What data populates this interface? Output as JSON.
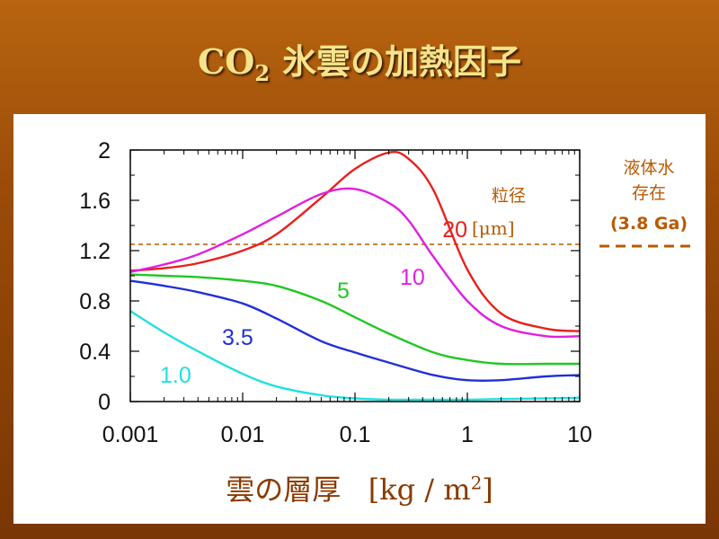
{
  "slide": {
    "title_main": "CO",
    "title_sub": "2",
    "title_rest": "氷雲の加熱因子"
  },
  "colors": {
    "background": "#9a4c08",
    "title": "#f6e48a",
    "annotation": "#b85a00",
    "axis_title": "#8a3a00"
  },
  "chart_data": {
    "type": "line",
    "title": "CO2 氷雲の加熱因子",
    "xlabel": "雲の層厚 [kg / m2]",
    "xlabel_main": "雲の層厚",
    "xlabel_unit": "[kg / m",
    "xlabel_unit_sup": "2",
    "xlabel_unit_end": "]",
    "ylabel": "",
    "xscale": "log",
    "xlim": [
      0.001,
      10
    ],
    "ylim": [
      0,
      2
    ],
    "x_ticks": [
      "0.001",
      "0.01",
      "0.1",
      "1",
      "10"
    ],
    "y_ticks": [
      "0",
      "0.4",
      "0.8",
      "1.2",
      "1.6",
      "2"
    ],
    "legend_title": "粒径",
    "unit_label": "[μm]",
    "series": [
      {
        "name": "20",
        "color": "#e8201c",
        "x": [
          0.001,
          0.002,
          0.004,
          0.01,
          0.02,
          0.05,
          0.1,
          0.2,
          0.3,
          0.5,
          1,
          2,
          5,
          10
        ],
        "y": [
          1.04,
          1.06,
          1.1,
          1.2,
          1.33,
          1.62,
          1.85,
          1.98,
          1.93,
          1.68,
          1.05,
          0.7,
          0.58,
          0.56
        ]
      },
      {
        "name": "10",
        "color": "#e020e0",
        "x": [
          0.001,
          0.002,
          0.004,
          0.01,
          0.02,
          0.05,
          0.1,
          0.2,
          0.3,
          0.5,
          1,
          2,
          5,
          10
        ],
        "y": [
          1.03,
          1.09,
          1.17,
          1.33,
          1.47,
          1.65,
          1.69,
          1.58,
          1.44,
          1.15,
          0.8,
          0.6,
          0.52,
          0.52
        ]
      },
      {
        "name": "5",
        "color": "#20c820",
        "x": [
          0.001,
          0.002,
          0.004,
          0.01,
          0.02,
          0.05,
          0.1,
          0.2,
          0.5,
          1,
          2,
          5,
          10
        ],
        "y": [
          1.01,
          1.0,
          0.99,
          0.96,
          0.92,
          0.8,
          0.67,
          0.54,
          0.39,
          0.33,
          0.3,
          0.3,
          0.3
        ]
      },
      {
        "name": "3.5",
        "color": "#2030d8",
        "x": [
          0.001,
          0.002,
          0.004,
          0.01,
          0.02,
          0.05,
          0.1,
          0.2,
          0.5,
          1,
          2,
          5,
          10
        ],
        "y": [
          0.96,
          0.92,
          0.87,
          0.78,
          0.66,
          0.48,
          0.39,
          0.31,
          0.21,
          0.17,
          0.17,
          0.2,
          0.21
        ]
      },
      {
        "name": "1.0",
        "color": "#20e0e0",
        "x": [
          0.001,
          0.002,
          0.004,
          0.01,
          0.02,
          0.05,
          0.1,
          0.2,
          0.5,
          1,
          2,
          5,
          10
        ],
        "y": [
          0.72,
          0.55,
          0.4,
          0.22,
          0.12,
          0.05,
          0.025,
          0.015,
          0.015,
          0.015,
          0.02,
          0.025,
          0.03
        ]
      }
    ],
    "reference_line": {
      "y": 1.25,
      "style": "dashed",
      "color": "#b85a00",
      "label_lines": [
        "液体水",
        "存在"
      ],
      "label_value": "(3.8 Ga)"
    }
  }
}
